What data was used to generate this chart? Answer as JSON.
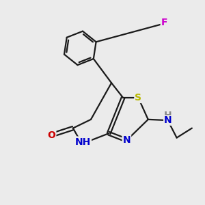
{
  "background_color": "#ebebeb",
  "bond_color": "#1a1a1a",
  "atom_colors": {
    "S": "#b8b800",
    "N": "#0000cc",
    "O": "#cc0000",
    "F": "#cc00cc",
    "H_gray": "#888888",
    "C": "#1a1a1a"
  },
  "font_size_atom": 10,
  "lw": 1.6
}
